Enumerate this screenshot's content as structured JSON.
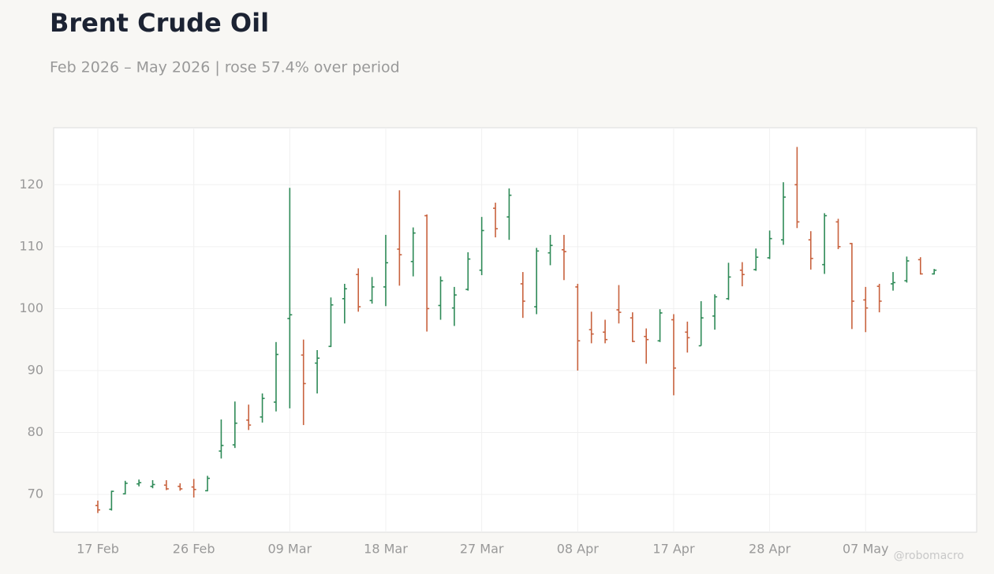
{
  "chart_data": {
    "type": "ohlc",
    "title": "Brent Crude Oil",
    "subtitle": "Feb 2026 – May 2026 | rose 57.4% over period",
    "credit": "@robomacro",
    "categories": [
      "17 Feb",
      null,
      null,
      null,
      null,
      null,
      null,
      "26 Feb",
      null,
      null,
      null,
      null,
      null,
      null,
      "09 Mar",
      null,
      null,
      null,
      null,
      null,
      null,
      "18 Mar",
      null,
      null,
      null,
      null,
      null,
      null,
      "27 Mar",
      null,
      null,
      null,
      null,
      null,
      null,
      "08 Apr",
      null,
      null,
      null,
      null,
      null,
      null,
      "17 Apr",
      null,
      null,
      null,
      null,
      null,
      null,
      "28 Apr",
      null,
      null,
      null,
      null,
      null,
      null,
      "07 May",
      null,
      null,
      null,
      null,
      null
    ],
    "open": [
      68.2,
      67.6,
      70.1,
      71.7,
      71.3,
      71.5,
      71.3,
      71.2,
      70.6,
      77.0,
      78.0,
      82.0,
      82.5,
      84.9,
      98.4,
      92.5,
      91.2,
      93.9,
      101.6,
      105.5,
      101.3,
      103.5,
      109.6,
      107.6,
      115.0,
      100.5,
      100.1,
      103.1,
      106.2,
      116.2,
      114.8,
      104.0,
      100.3,
      109.0,
      109.5,
      103.5,
      96.6,
      96.2,
      99.8,
      98.5,
      95.5,
      94.8,
      98.2,
      96.2,
      94.0,
      98.8,
      101.6,
      106.2,
      106.3,
      108.2,
      111.1,
      120.0,
      111.1,
      107.1,
      114.0,
      110.5,
      101.4,
      103.6,
      104.0,
      104.5,
      107.9,
      105.6
    ],
    "high": [
      69.0,
      70.6,
      72.2,
      72.4,
      72.3,
      72.3,
      71.8,
      72.5,
      73.0,
      82.1,
      85.0,
      84.5,
      86.3,
      94.6,
      119.5,
      95.0,
      93.3,
      101.8,
      104.0,
      106.5,
      105.1,
      111.9,
      119.1,
      113.1,
      115.2,
      105.2,
      103.5,
      109.1,
      114.8,
      117.1,
      119.4,
      105.9,
      109.8,
      111.9,
      111.9,
      104.0,
      99.5,
      98.2,
      103.8,
      99.4,
      96.8,
      99.9,
      99.1,
      97.9,
      101.2,
      102.3,
      107.4,
      107.5,
      109.7,
      112.6,
      120.4,
      126.1,
      112.5,
      115.4,
      114.5,
      110.6,
      103.5,
      104.0,
      105.9,
      108.4,
      108.3,
      106.4
    ],
    "low": [
      67.0,
      67.4,
      70.0,
      71.3,
      71.0,
      70.7,
      70.6,
      69.5,
      70.5,
      75.8,
      77.5,
      80.4,
      81.6,
      83.4,
      83.9,
      81.2,
      86.3,
      93.8,
      97.6,
      99.5,
      100.8,
      100.4,
      103.7,
      105.2,
      96.3,
      98.2,
      97.2,
      102.9,
      105.4,
      111.5,
      111.1,
      98.5,
      99.1,
      107.0,
      104.6,
      90.0,
      94.4,
      94.4,
      97.6,
      94.6,
      91.1,
      94.6,
      86.0,
      92.9,
      94.0,
      96.6,
      101.4,
      103.6,
      106.1,
      108.0,
      110.3,
      113.0,
      106.3,
      105.6,
      109.6,
      96.7,
      96.2,
      99.4,
      102.9,
      104.2,
      105.5,
      105.5
    ],
    "close": [
      67.5,
      70.5,
      71.8,
      71.9,
      71.6,
      70.9,
      70.9,
      70.8,
      72.6,
      77.9,
      81.5,
      81.2,
      85.5,
      92.6,
      99.0,
      87.9,
      92.0,
      100.6,
      103.2,
      100.3,
      103.5,
      107.4,
      108.7,
      112.2,
      100.0,
      104.5,
      102.2,
      108.0,
      112.6,
      112.9,
      118.3,
      101.2,
      109.3,
      110.2,
      109.2,
      94.8,
      95.9,
      95.0,
      99.4,
      94.7,
      95.0,
      99.3,
      90.4,
      95.3,
      98.5,
      101.9,
      105.1,
      105.5,
      108.3,
      111.3,
      118.0,
      114.0,
      108.1,
      115.0,
      110.0,
      101.2,
      100.1,
      101.2,
      104.2,
      107.7,
      105.6,
      106.2
    ],
    "up_color": "#2e8a57",
    "down_color": "#c8623e",
    "ylim": [
      63.9,
      129.2
    ],
    "yticks": [
      70,
      80,
      90,
      100,
      110,
      120
    ],
    "grid": true
  }
}
